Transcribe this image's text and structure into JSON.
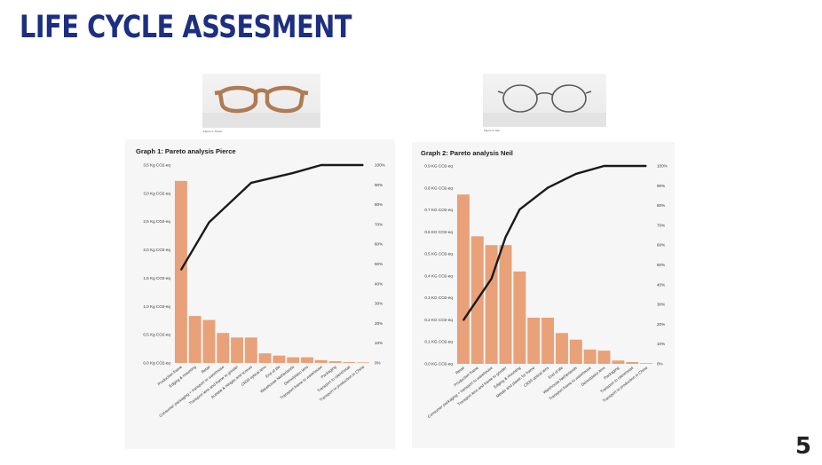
{
  "slide": {
    "title": "LIFE CYCLE ASSESMENT",
    "page_number": "5"
  },
  "figures": [
    {
      "caption": "Figure 1: Pierce"
    },
    {
      "caption": "Figure 2: Neil"
    }
  ],
  "colors": {
    "title": "#1c2f80",
    "bar": "#e8a178",
    "line": "#1a1a1a"
  },
  "chart_data": [
    {
      "type": "bar",
      "title": "Graph 1: Pareto analysis Pierce",
      "categories": [
        "Production frame",
        "Edging & mounting",
        "Retail",
        "Consumer packaging + transport to warehouse",
        "Transport lens and frame to grinder",
        "Acetate & Hinges and screws",
        "CR39 optical lens",
        "End of life",
        "Warehouse Netherlands",
        "Demo/plano lens",
        "Transport frame to warehouse",
        "Packaging",
        "Transport to client/retail",
        "Transport to production in China"
      ],
      "values": [
        3.22,
        0.83,
        0.76,
        0.53,
        0.45,
        0.45,
        0.17,
        0.13,
        0.1,
        0.1,
        0.05,
        0.03,
        0.015,
        0.01
      ],
      "cumulative_percent": [
        47,
        71,
        91,
        96,
        100,
        100,
        100
      ],
      "cumulative_categories": [
        "Production frame",
        "Retail",
        "Acetate & Hinges and screws",
        "Warehouse Netherlands",
        "Transport frame to warehouse",
        "Packaging",
        "Transport to production in China"
      ],
      "y_ticks": [
        "0,0 Kg CO2-eq",
        "0,5 Kg CO2-eq",
        "1,0 Kg CO2-eq",
        "1,5 Kg CO2-eq",
        "2,0 Kg CO2-eq",
        "2,5 Kg CO2-eq",
        "3,0 Kg CO2-eq",
        "3,5 Kg CO2-eq"
      ],
      "y2_ticks": [
        "0%",
        "10%",
        "20%",
        "30%",
        "40%",
        "50%",
        "60%",
        "70%",
        "80%",
        "90%",
        "100%"
      ],
      "ylim": [
        0,
        3.5
      ],
      "y2lim": [
        0,
        100
      ]
    },
    {
      "type": "bar",
      "title": "Graph 2: Pareto analysis Neil",
      "categories": [
        "Retail",
        "Production frame",
        "Consumer packaging + transport to warehouse",
        "Transport lens and frame to grinder",
        "Edging & mounting",
        "Metals and plastic for frame",
        "CR39 optical lens",
        "End of life",
        "Warehouse Netherlands",
        "Transport frame to warehouse",
        "Demo/plano lens",
        "Packaging",
        "Transport to client/retail",
        "Transport to production in China"
      ],
      "values": [
        0.77,
        0.58,
        0.54,
        0.54,
        0.42,
        0.21,
        0.21,
        0.14,
        0.11,
        0.065,
        0.06,
        0.015,
        0.008,
        0.003
      ],
      "cumulative_percent": [
        22,
        43,
        64,
        78,
        89,
        96,
        100,
        100,
        100
      ],
      "cumulative_categories": [
        "Retail",
        "Consumer packaging + transport to warehouse",
        "Transport lens and frame to grinder",
        "Edging & mounting",
        "CR39 optical lens",
        "Warehouse Netherlands",
        "Demo/plano lens",
        "Packaging",
        "Transport to production in China"
      ],
      "y_ticks": [
        "0.0 KG CO2-eq",
        "0.1 KG CO2-eq",
        "0.2 KG CO2-eq",
        "0.3 KG CO2-eq",
        "0.4 KG CO2-eq",
        "0.5 KG CO2-eq",
        "0.6 KG CO2-eq",
        "0.7 KG CO2-eq",
        "0.8 KG CO2-eq",
        "0.9 KG CO2-eq"
      ],
      "y2_ticks": [
        "0%",
        "10%",
        "20%",
        "30%",
        "40%",
        "50%",
        "60%",
        "70%",
        "80%",
        "90%",
        "100%"
      ],
      "ylim": [
        0,
        0.9
      ],
      "y2lim": [
        0,
        100
      ]
    }
  ]
}
